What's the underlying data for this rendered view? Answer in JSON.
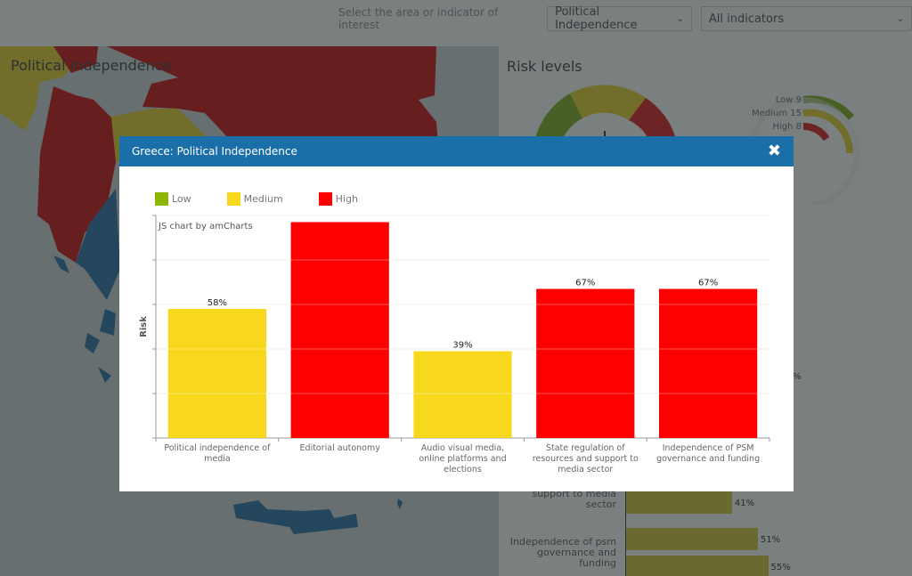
{
  "filter_bar": {
    "label": "Select the area or indicator of interest",
    "area_select": {
      "value": "Political Independence"
    },
    "indicator_select": {
      "value": "All indicators"
    }
  },
  "background": {
    "map_title": "Political Independence",
    "risk_title": "Risk levels",
    "colors": {
      "low": "#5a7a0a",
      "medium": "#9a8a10",
      "high": "#8c0000",
      "greece": "#124a6e",
      "ocean": "#7b8383"
    },
    "radial_legend": [
      {
        "label": "Low 9"
      },
      {
        "label": "Medium 15"
      },
      {
        "label": "High 8"
      }
    ],
    "hbars": [
      {
        "label_lines": [
          "support to media",
          "sector"
        ],
        "value": "41%",
        "fraction": 0.41
      },
      {
        "label_lines": [
          "Independence of psm",
          "governance and",
          "funding"
        ],
        "value": "51%",
        "fraction": 0.51
      },
      {
        "label_lines": [],
        "value": "55%",
        "fraction": 0.55
      }
    ],
    "stray_value": "%"
  },
  "modal": {
    "title": "Greece: Political Independence",
    "close_icon": "close-icon"
  },
  "chart_data": {
    "type": "bar",
    "title": "Greece: Political Independence",
    "credit": "JS chart by amCharts",
    "xlabel": "",
    "ylabel": "Risk",
    "ylim": [
      0,
      100
    ],
    "grid": true,
    "legend": {
      "position": "top-left",
      "entries": [
        {
          "name": "Low",
          "color": "#8db600"
        },
        {
          "name": "Medium",
          "color": "#f8d81c"
        },
        {
          "name": "High",
          "color": "#ff0000"
        }
      ]
    },
    "categories": [
      [
        "Political independence of",
        "media"
      ],
      [
        "Editorial autonomy"
      ],
      [
        "Audio visual media,",
        "online platforms and",
        "elections"
      ],
      [
        "State regulation of",
        "resources and support to",
        "media sector"
      ],
      [
        "Independence of PSM",
        "governance and funding"
      ]
    ],
    "values": [
      58,
      97,
      39,
      67,
      67
    ],
    "value_labels": [
      "58%",
      "",
      "39%",
      "67%",
      "67%"
    ],
    "levels": [
      "Medium",
      "High",
      "Medium",
      "High",
      "High"
    ],
    "level_colors": {
      "Low": "#8db600",
      "Medium": "#f8d81c",
      "High": "#ff0000"
    }
  }
}
